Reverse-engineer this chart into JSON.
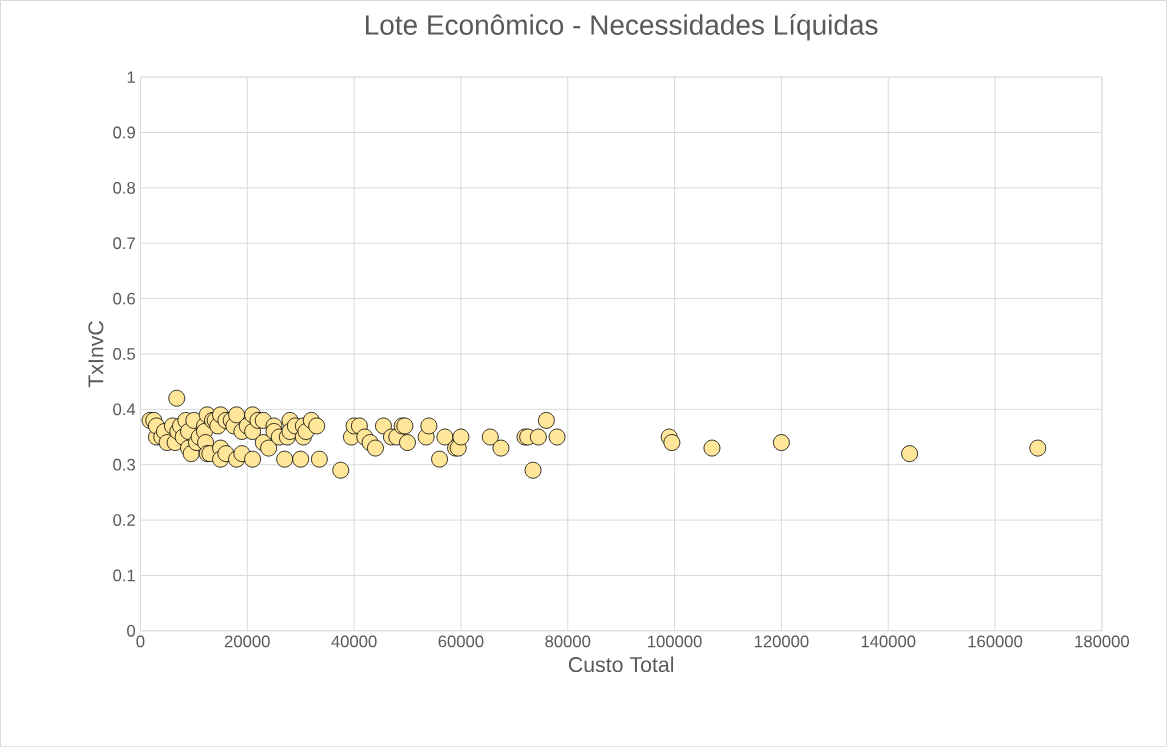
{
  "chart_data": {
    "type": "scatter",
    "title": "Lote Econômico - Necessidades Líquidas",
    "xlabel": "Custo Total",
    "ylabel": "TxInvC",
    "xlim": [
      0,
      180000
    ],
    "xticks": [
      0,
      20000,
      40000,
      60000,
      80000,
      100000,
      120000,
      140000,
      160000,
      180000
    ],
    "ylim": [
      0,
      1
    ],
    "yticks": [
      0,
      0.1,
      0.2,
      0.3,
      0.4,
      0.5,
      0.6,
      0.7,
      0.8,
      0.9,
      1
    ],
    "grid": true,
    "marker": "circle",
    "series": [
      {
        "color": "#ffe699",
        "x": [
          1800,
          2500,
          3000,
          3000,
          4000,
          4500,
          5000,
          6000,
          6500,
          6800,
          7000,
          7500,
          8000,
          8500,
          9000,
          9000,
          9500,
          10000,
          10500,
          11000,
          12000,
          12000,
          12200,
          12500,
          12500,
          13000,
          13500,
          14000,
          14500,
          15000,
          15000,
          15000,
          16000,
          16000,
          17000,
          17500,
          18000,
          18000,
          19000,
          19000,
          20000,
          21000,
          21000,
          21000,
          22000,
          23000,
          23000,
          24000,
          25000,
          25000,
          26000,
          27000,
          27500,
          28000,
          28000,
          29000,
          30000,
          30500,
          30500,
          31000,
          32000,
          33000,
          33500,
          37500,
          39500,
          40000,
          41000,
          42000,
          43000,
          44000,
          45500,
          47000,
          48000,
          49000,
          49500,
          50000,
          53500,
          54000,
          56000,
          57000,
          59000,
          59500,
          60000,
          65500,
          67500,
          72000,
          72500,
          73500,
          74500,
          76000,
          78000,
          99000,
          99500,
          107000,
          120000,
          144000,
          168000
        ],
        "values": [
          0.38,
          0.38,
          0.35,
          0.37,
          0.35,
          0.36,
          0.34,
          0.37,
          0.34,
          0.42,
          0.36,
          0.37,
          0.35,
          0.38,
          0.36,
          0.33,
          0.32,
          0.38,
          0.34,
          0.35,
          0.37,
          0.36,
          0.34,
          0.39,
          0.32,
          0.32,
          0.38,
          0.38,
          0.37,
          0.39,
          0.33,
          0.31,
          0.38,
          0.32,
          0.38,
          0.37,
          0.39,
          0.31,
          0.36,
          0.32,
          0.37,
          0.39,
          0.36,
          0.31,
          0.38,
          0.38,
          0.34,
          0.33,
          0.37,
          0.36,
          0.35,
          0.31,
          0.35,
          0.38,
          0.36,
          0.37,
          0.31,
          0.37,
          0.35,
          0.36,
          0.38,
          0.37,
          0.31,
          0.29,
          0.35,
          0.37,
          0.37,
          0.35,
          0.34,
          0.33,
          0.37,
          0.35,
          0.35,
          0.37,
          0.37,
          0.34,
          0.35,
          0.37,
          0.31,
          0.35,
          0.33,
          0.33,
          0.35,
          0.35,
          0.33,
          0.35,
          0.35,
          0.29,
          0.35,
          0.38,
          0.35,
          0.35,
          0.34,
          0.33,
          0.34,
          0.32,
          0.33
        ]
      }
    ]
  }
}
